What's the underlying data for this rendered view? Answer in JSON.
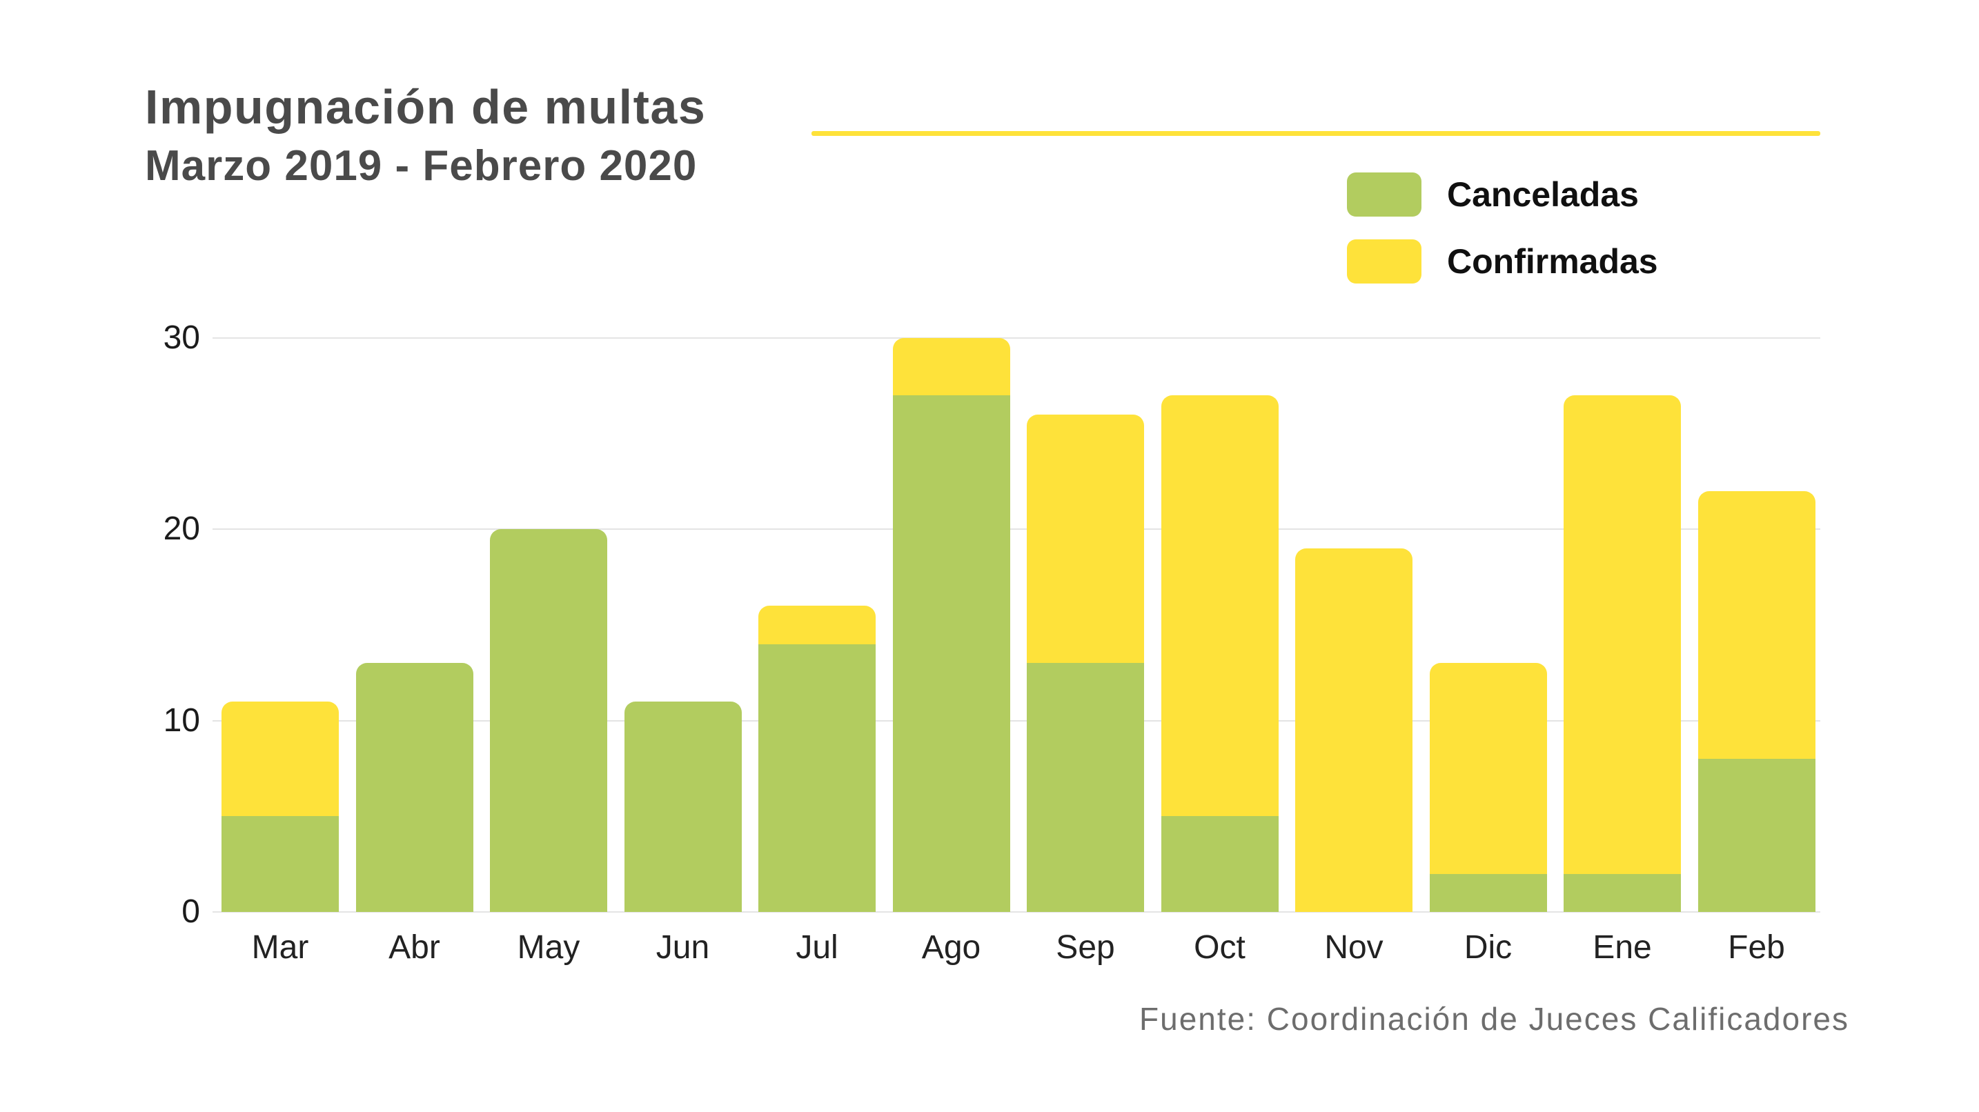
{
  "header": {
    "title": "Impugnación de multas",
    "subtitle": "Marzo 2019 - Febrero 2020"
  },
  "footer": {
    "source": "Fuente: Coordinación de Jueces Calificadores"
  },
  "colors": {
    "background": "#ffffff",
    "green": "#b2cc5f",
    "yellow": "#fee23a",
    "title_text": "#4a4a4a",
    "axis_text": "#1b1b1b",
    "legend_text": "#101010",
    "source_text": "#6d6d6d",
    "gridline": "#e4e4e4",
    "accent_line": "#fee23a"
  },
  "chart_data": {
    "type": "bar",
    "stacked": true,
    "title": "Impugnación de multas",
    "subtitle": "Marzo 2019 - Febrero 2020",
    "xlabel": "",
    "ylabel": "",
    "categories": [
      "Mar",
      "Abr",
      "May",
      "Jun",
      "Jul",
      "Ago",
      "Sep",
      "Oct",
      "Nov",
      "Dic",
      "Ene",
      "Feb"
    ],
    "series": [
      {
        "name": "Canceladas",
        "color": "#b2cc5f",
        "values": [
          5,
          13,
          20,
          11,
          14,
          27,
          13,
          5,
          0,
          2,
          2,
          8
        ]
      },
      {
        "name": "Confirmadas",
        "color": "#fee23a",
        "values": [
          6,
          0,
          0,
          0,
          2,
          3,
          13,
          22,
          19,
          11,
          25,
          14
        ]
      }
    ],
    "totals": [
      11,
      13,
      20,
      11,
      16,
      30,
      26,
      27,
      19,
      13,
      27,
      22
    ],
    "ylim": [
      0,
      30
    ],
    "yticks": [
      0,
      10,
      20,
      30
    ],
    "grid": true,
    "legend_position": "top-right",
    "source": "Fuente: Coordinación de Jueces Calificadores"
  }
}
